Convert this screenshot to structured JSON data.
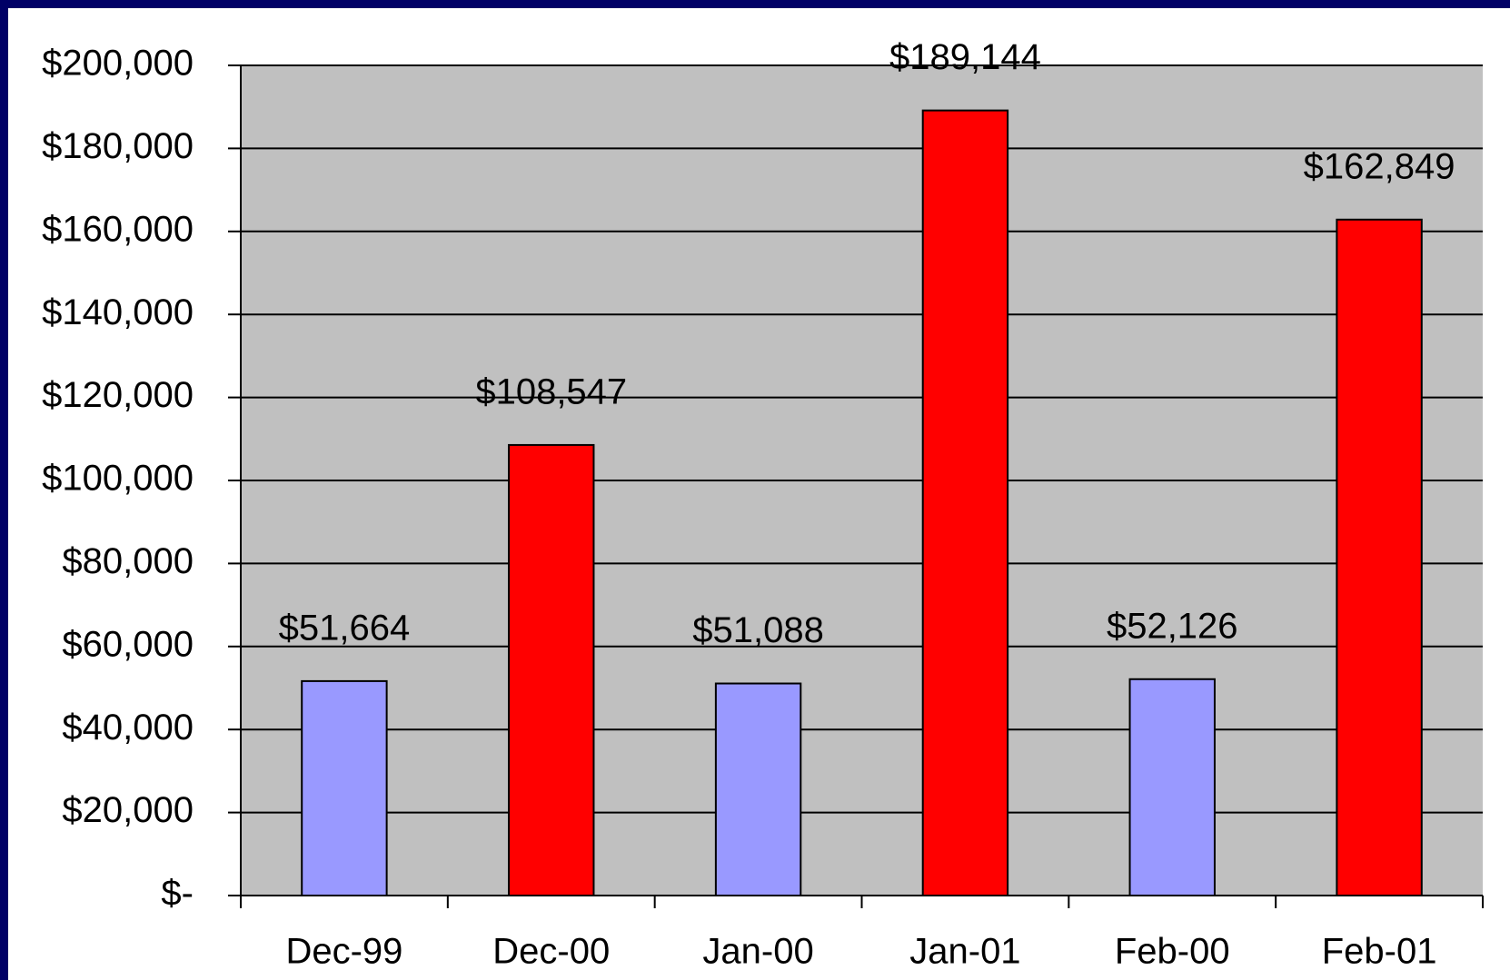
{
  "chart_data": {
    "type": "bar",
    "categories": [
      "Dec-99",
      "Dec-00",
      "Jan-00",
      "Jan-01",
      "Feb-00",
      "Feb-01"
    ],
    "values": [
      51664,
      108547,
      51088,
      189144,
      52126,
      162849
    ],
    "value_labels": [
      "$51,664",
      "$108,547",
      "$51,088",
      "$189,144",
      "$52,126",
      "$162,849"
    ],
    "colors": [
      "#9999ff",
      "#ff0000",
      "#9999ff",
      "#ff0000",
      "#9999ff",
      "#ff0000"
    ],
    "ylim": [
      0,
      200000
    ],
    "yticks": [
      {
        "value": 0,
        "label": "$-"
      },
      {
        "value": 20000,
        "label": "$20,000"
      },
      {
        "value": 40000,
        "label": "$40,000"
      },
      {
        "value": 60000,
        "label": "$60,000"
      },
      {
        "value": 80000,
        "label": "$80,000"
      },
      {
        "value": 100000,
        "label": "$100,000"
      },
      {
        "value": 120000,
        "label": "$120,000"
      },
      {
        "value": 140000,
        "label": "$140,000"
      },
      {
        "value": 160000,
        "label": "$160,000"
      },
      {
        "value": 180000,
        "label": "$180,000"
      },
      {
        "value": 200000,
        "label": "$200,000"
      }
    ],
    "grid": true
  }
}
